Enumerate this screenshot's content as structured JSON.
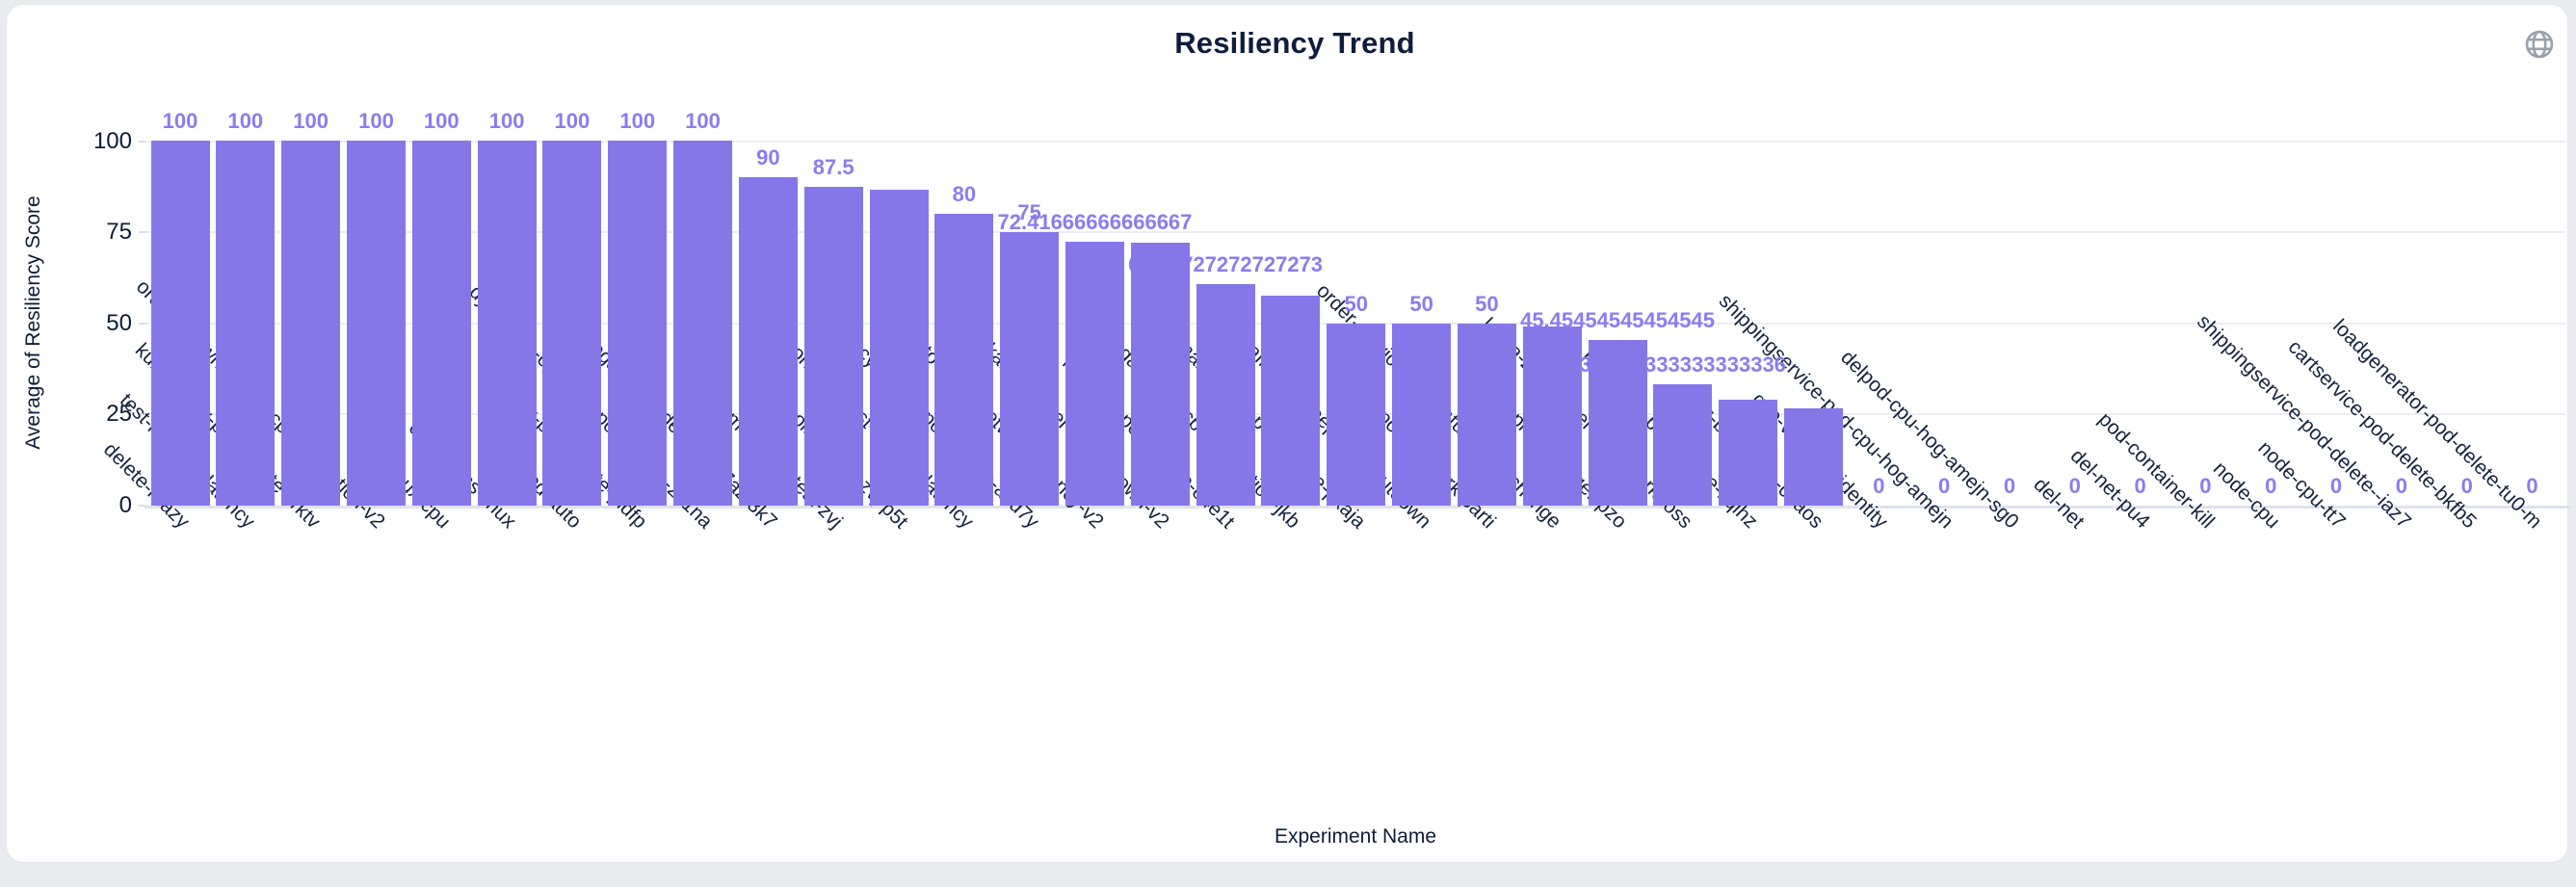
{
  "page": {
    "background_color": "#e9ebee",
    "card_background": "#ffffff",
    "card_border_color": "#e3e6ec"
  },
  "header": {
    "title": "Resiliency Trend",
    "action_icon": "globe-icon",
    "action_icon_color": "#99a1af"
  },
  "chart_data": {
    "type": "bar",
    "title": "Resiliency Trend",
    "xlabel": "Experiment Name",
    "ylabel": "Average of Resiliency Score",
    "ylim": [
      0,
      100
    ],
    "yticks": [
      0,
      25,
      50,
      75,
      100
    ],
    "grid": true,
    "legend": "none",
    "bar_color": "#8677e9",
    "value_label_color": "#8b7cef",
    "axis_text_color": "#0c1b38",
    "category_text_color": "#16233f",
    "grid_color": "#ededf2",
    "axis_line_color": "#dfe3ef",
    "bars": [
      {
        "name": "delete-rnazy",
        "value": 100,
        "label": "100",
        "label_visible": true
      },
      {
        "name": "test-network-latency",
        "value": 100,
        "label": "100",
        "label_visible": true
      },
      {
        "name": "kube-proxy-pod-delete-vrktv",
        "value": 100,
        "label": "100",
        "label_visible": true
      },
      {
        "name": "orders-slowness-via-cpu-starvation-v2",
        "value": 100,
        "label": "100",
        "label_visible": true
      },
      {
        "name": "linux-cpu",
        "value": 100,
        "label": "100",
        "label_visible": true
      },
      {
        "name": "cpu-stress-linux",
        "value": 100,
        "label": "100",
        "label_visible": true
      },
      {
        "name": "pod-auto",
        "value": 100,
        "label": "100",
        "label_visible": true
      },
      {
        "name": "nginx-pod-delete-pldfp",
        "value": 100,
        "label": "100",
        "label_visible": true
      },
      {
        "name": "dynatrace-operator-pod-delete-zx1na",
        "value": 100,
        "label": "100",
        "label_visible": true
      },
      {
        "name": "smr-delegate-pod-delete-437az-3k7",
        "value": 90,
        "label": "90",
        "label_visible": true
      },
      {
        "name": "mongodb-test-zvj",
        "value": 87.5,
        "label": "87.5",
        "label_visible": true
      },
      {
        "name": "solace-test-zvj-p5t",
        "value": 86.66666666666667,
        "label": "",
        "label_visible": false
      },
      {
        "name": "mongodb-test-zvj-4c1-latency",
        "value": 80,
        "label": "80",
        "label_visible": true
      },
      {
        "name": "currencyservice-pod-delete-axd7y",
        "value": 75,
        "label": "75",
        "label_visible": true
      },
      {
        "name": "invoice-to-kafka-network-latency-v2",
        "value": 72.41666666666667,
        "label": "72.41666666666667",
        "label_visible": true
      },
      {
        "name": "kafka-broker-1-shutdown-v2",
        "value": 72,
        "label": "",
        "label_visible": false
      },
      {
        "name": "frontend-pod-delete-e4e1t",
        "value": 60.72727272727273,
        "label": "60.72727272727273",
        "label_visible": true
      },
      {
        "name": "lambda-block-tcp-connection-jkb",
        "value": 57.5,
        "label": "",
        "label_visible": false
      },
      {
        "name": "emailservice-pod-delete-pxaja",
        "value": 50,
        "label": "50",
        "label_visible": true
      },
      {
        "name": "kafka-zookeeper-2-shutdown",
        "value": 50,
        "label": "50",
        "label_visible": true
      },
      {
        "name": "pod-network-parti",
        "value": 50,
        "label": "50",
        "label_visible": true
      },
      {
        "name": "order-service-api-status-code-change",
        "value": 49.09090909090909,
        "label": "",
        "label_visible": false
      },
      {
        "name": "test-probe-logger-pzo",
        "value": 45.45454545454545,
        "label": "45.45454545454545",
        "label_visible": true
      },
      {
        "name": "kafka-zookeeper-2-network-loss",
        "value": 33.333333333333336,
        "label": "33.333333333333336",
        "label_visible": true
      },
      {
        "name": "redis-cart-pod-delete-kqihz",
        "value": 29.166666666666668,
        "label": "",
        "label_visible": false
      },
      {
        "name": "az-blackhole-chaos",
        "value": 26.666666666666668,
        "label": "",
        "label_visible": false
      },
      {
        "name": "gcp-vm-stop-identity",
        "value": 0,
        "label": "0",
        "label_visible": true
      },
      {
        "name": "shippingservice-pod-cpu-hog-amejn",
        "value": 0,
        "label": "0",
        "label_visible": true
      },
      {
        "name": "delpod-cpu-hog-amejn-sg0",
        "value": 0,
        "label": "0",
        "label_visible": true
      },
      {
        "name": "del-net",
        "value": 0,
        "label": "0",
        "label_visible": true
      },
      {
        "name": "del-net-pu4",
        "value": 0,
        "label": "0",
        "label_visible": true
      },
      {
        "name": "pod-container-kill",
        "value": 0,
        "label": "0",
        "label_visible": true
      },
      {
        "name": "node-cpu",
        "value": 0,
        "label": "0",
        "label_visible": true
      },
      {
        "name": "node-cpu-tt7",
        "value": 0,
        "label": "0",
        "label_visible": true
      },
      {
        "name": "shippingservice-pod-delete--iaz7",
        "value": 0,
        "label": "0",
        "label_visible": true
      },
      {
        "name": "cartservice-pod-delete-bkfb5",
        "value": 0,
        "label": "0",
        "label_visible": true
      },
      {
        "name": "loadgenerator-pod-delete-tu0-m",
        "value": 0,
        "label": "0",
        "label_visible": true
      }
    ]
  }
}
